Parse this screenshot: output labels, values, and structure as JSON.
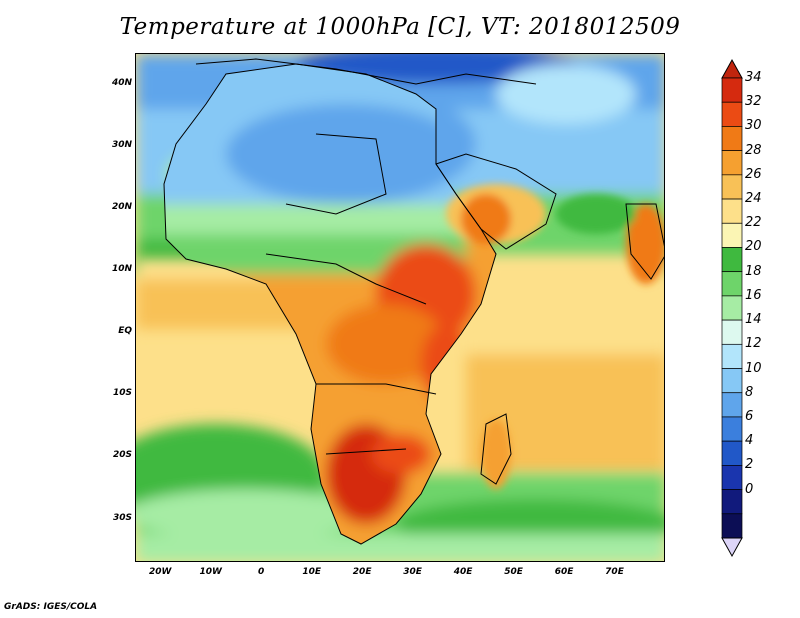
{
  "title": "Temperature at 1000hPa [C], VT: 2018012509",
  "credit": "GrADS: IGES/COLA",
  "map": {
    "lon_range": [
      -25,
      80
    ],
    "lat_range": [
      -37,
      45
    ],
    "lat_ticks": [
      {
        "value": 40,
        "label": "40N"
      },
      {
        "value": 30,
        "label": "30N"
      },
      {
        "value": 20,
        "label": "20N"
      },
      {
        "value": 10,
        "label": "10N"
      },
      {
        "value": 0,
        "label": "EQ"
      },
      {
        "value": -10,
        "label": "10S"
      },
      {
        "value": -20,
        "label": "20S"
      },
      {
        "value": -30,
        "label": "30S"
      }
    ],
    "lon_ticks": [
      {
        "value": -20,
        "label": "20W"
      },
      {
        "value": -10,
        "label": "10W"
      },
      {
        "value": 0,
        "label": "0"
      },
      {
        "value": 10,
        "label": "10E"
      },
      {
        "value": 20,
        "label": "20E"
      },
      {
        "value": 30,
        "label": "30E"
      },
      {
        "value": 40,
        "label": "40E"
      },
      {
        "value": 50,
        "label": "50E"
      },
      {
        "value": 60,
        "label": "60E"
      },
      {
        "value": 70,
        "label": "70E"
      }
    ]
  },
  "colorbar": {
    "labels": [
      "34",
      "32",
      "30",
      "28",
      "26",
      "24",
      "22",
      "20",
      "18",
      "16",
      "14",
      "12",
      "10",
      "8",
      "6",
      "4",
      "2",
      "0"
    ],
    "colors": [
      "#d52a0f",
      "#eb4b14",
      "#f07a16",
      "#f5a030",
      "#f8c157",
      "#fde08a",
      "#fbf5b4",
      "#3fb93f",
      "#6ed46a",
      "#a6eca4",
      "#ddf9ef",
      "#b2e5fb",
      "#86c8f5",
      "#5fa5eb",
      "#3b7fdd",
      "#2158c8",
      "#1a35ae",
      "#111a7c",
      "#0c0e55"
    ],
    "over_color": "#c0250e",
    "under_color": "#ddd5f8"
  }
}
